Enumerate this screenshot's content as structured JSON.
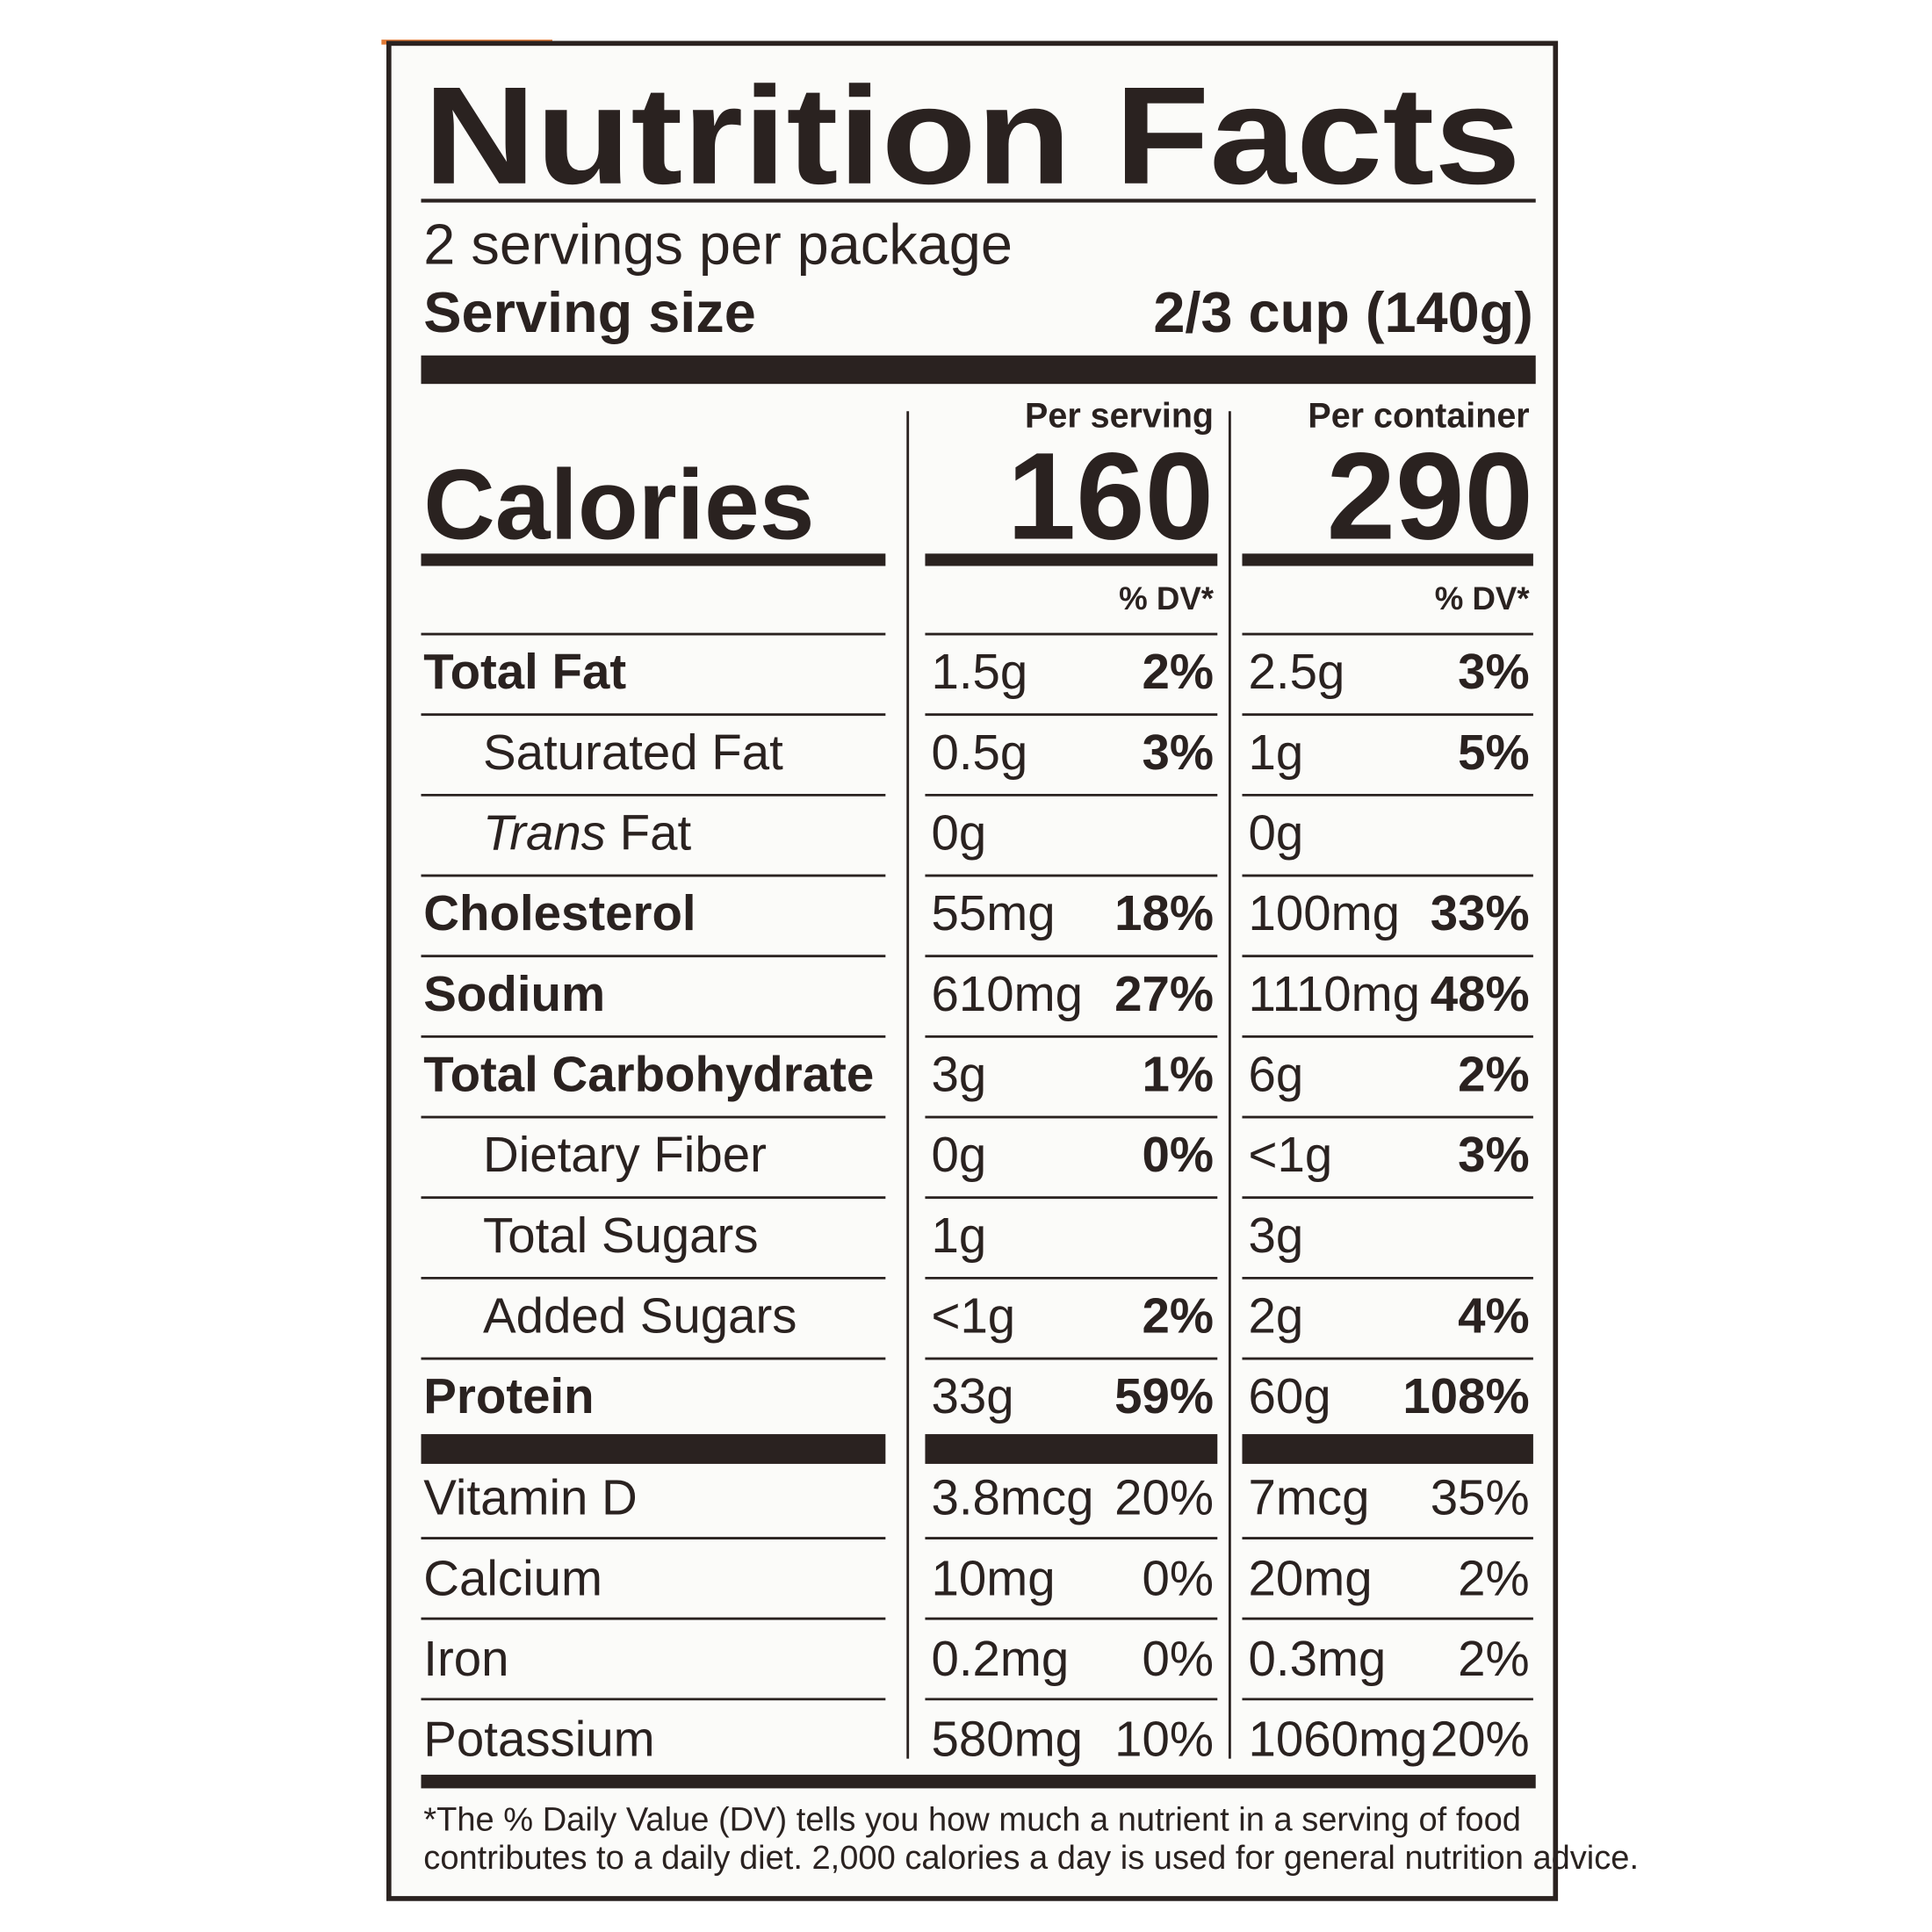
{
  "header": {
    "title": "Nutrition Facts",
    "servings": "2 servings per package",
    "serving_size_label": "Serving size",
    "serving_size_value": "2/3 cup (140g)"
  },
  "columns": [
    "Per serving",
    "Per container"
  ],
  "calories": {
    "label": "Calories",
    "values": [
      "160",
      "290"
    ]
  },
  "dv_header": [
    "% DV*",
    "% DV*"
  ],
  "rows": [
    {
      "label": "Total Fat",
      "bold": true,
      "indent": false,
      "cells": [
        [
          "1.5g",
          "2%"
        ],
        [
          "2.5g",
          "3%"
        ]
      ]
    },
    {
      "label": "Saturated Fat",
      "bold": false,
      "indent": true,
      "cells": [
        [
          "0.5g",
          "3%"
        ],
        [
          "1g",
          "5%"
        ]
      ]
    },
    {
      "label_italic": "Trans",
      "label": " Fat",
      "bold": false,
      "indent": true,
      "cells": [
        [
          "0g",
          null
        ],
        [
          "0g",
          null
        ]
      ]
    },
    {
      "label": "Cholesterol",
      "bold": true,
      "indent": false,
      "cells": [
        [
          "55mg",
          "18%"
        ],
        [
          "100mg",
          "33%"
        ]
      ]
    },
    {
      "label": "Sodium",
      "bold": true,
      "indent": false,
      "cells": [
        [
          "610mg",
          "27%"
        ],
        [
          "1110mg",
          "48%"
        ]
      ]
    },
    {
      "label": "Total Carbohydrate",
      "bold": true,
      "indent": false,
      "cells": [
        [
          "3g",
          "1%"
        ],
        [
          "6g",
          "2%"
        ]
      ]
    },
    {
      "label": "Dietary Fiber",
      "bold": false,
      "indent": true,
      "cells": [
        [
          "0g",
          "0%"
        ],
        [
          "<1g",
          "3%"
        ]
      ]
    },
    {
      "label": "Total Sugars",
      "bold": false,
      "indent": true,
      "cells": [
        [
          "1g",
          null
        ],
        [
          "3g",
          null
        ]
      ]
    },
    {
      "label": "Added Sugars",
      "bold": false,
      "indent": true,
      "cells": [
        [
          "<1g",
          "2%"
        ],
        [
          "2g",
          "4%"
        ]
      ]
    },
    {
      "label": "Protein",
      "bold": true,
      "indent": false,
      "cells": [
        [
          "33g",
          "59%"
        ],
        [
          "60g",
          "108%"
        ]
      ]
    }
  ],
  "vitamins": [
    {
      "label": "Vitamin D",
      "cells": [
        [
          "3.8mcg",
          "20%"
        ],
        [
          "7mcg",
          "35%"
        ]
      ]
    },
    {
      "label": "Calcium",
      "cells": [
        [
          "10mg",
          "0%"
        ],
        [
          "20mg",
          "2%"
        ]
      ]
    },
    {
      "label": "Iron",
      "cells": [
        [
          "0.2mg",
          "0%"
        ],
        [
          "0.3mg",
          "2%"
        ]
      ]
    },
    {
      "label": "Potassium",
      "cells": [
        [
          "580mg",
          "10%"
        ],
        [
          "1060mg",
          "20%"
        ]
      ]
    }
  ],
  "footnote": [
    "*The % Daily Value (DV) tells you how much a nutrient in a serving of food",
    "contributes to a daily diet. 2,000 calories a day is used for general nutrition advice."
  ]
}
